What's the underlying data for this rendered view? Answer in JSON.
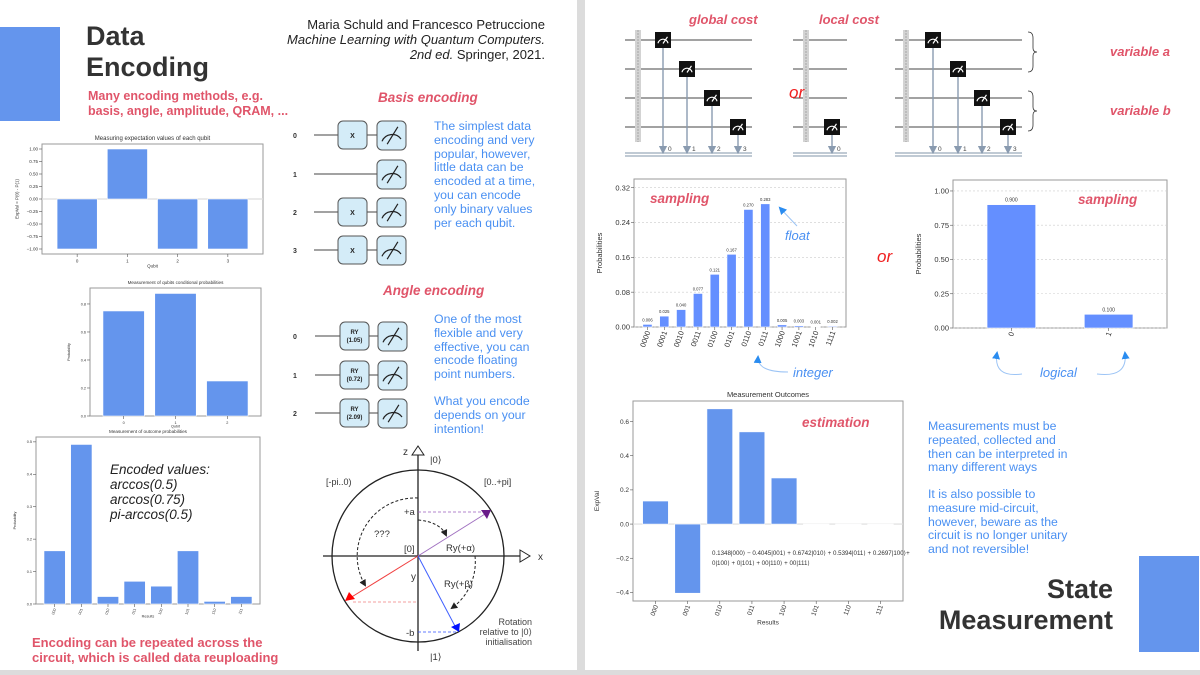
{
  "left_slide": {
    "title": [
      "Data",
      "Encoding"
    ],
    "subtitle": [
      "Many encoding methods, e.g.",
      "basis, angle, amplitude, QRAM, ..."
    ],
    "citation": {
      "authors": "Maria Schuld and Francesco Petruccione",
      "book": "Machine Learning with Quantum Computers.",
      "edition": "2nd ed.",
      "publisher": " Springer, 2021."
    },
    "basis": {
      "title": "Basis encoding",
      "qubits": [
        "0",
        "1",
        "2",
        "3"
      ],
      "gates": [
        "X",
        "",
        "X",
        "X"
      ],
      "description": "The simplest data encoding and very popular, however, little data can be encoded at a time, you can encode only binary values per each qubit."
    },
    "angle": {
      "title": "Angle encoding",
      "qubits": [
        "0",
        "1",
        "2"
      ],
      "gates": [
        {
          "name": "RY",
          "param": "(1.05)"
        },
        {
          "name": "RY",
          "param": "(0.72)"
        },
        {
          "name": "RY",
          "param": "(2.09)"
        }
      ],
      "description": "One of the most flexible and very effective, you can encode floating point numbers.",
      "note": "What you encode depends on your intention!"
    },
    "encoded_values": [
      "Encoded values:",
      "arccos(0.5)",
      "arccos(0.75)",
      "pi-arccos(0.5)"
    ],
    "footer": [
      "Encoding can be repeated across the",
      "circuit, which is called data reuploading"
    ],
    "bloch": {
      "z": "z",
      "x": "x",
      "y": "y",
      "ket0": "|0⟩",
      "ket1": "|1⟩",
      "neg_range": "[-pi..0)",
      "pos_range": "[0..+pi]",
      "plus_a": "+a",
      "minus_b": "-b",
      "origin": "[0]",
      "unknown": "???",
      "ry_alpha": "Ry(+α)",
      "ry_beta": "Ry(+β)",
      "caption": [
        "Rotation",
        "relative to |0⟩",
        "initialisation"
      ]
    }
  },
  "right_slide": {
    "global_cost": "global cost",
    "local_cost": "local cost",
    "or": "or",
    "variable_a": "variable a",
    "variable_b": "variable b",
    "global_bits": [
      "0",
      "1",
      "2",
      "3"
    ],
    "local_bits": [
      "0"
    ],
    "var_bits": [
      "0",
      "1",
      "2",
      "3"
    ],
    "sampling": "sampling",
    "float": "float",
    "integer": "integer",
    "logical": "logical",
    "estimation": "estimation",
    "estimation_formula": [
      "0.1348|000⟩ − 0.4045|001⟩ + 0.6742|010⟩ + 0.5394|011⟩ + 0.2697|100⟩+",
      "0|100⟩ + 0|101⟩ + 00|110⟩ + 00|111⟩"
    ],
    "description": "Measurements must be repeated, collected and then can be interpreted in many different ways",
    "description2": "It is also possible to measure mid-circuit, however, beware as the circuit is no longer unitary and not reversible!",
    "title": [
      "State",
      "Measurement"
    ]
  },
  "colors": {
    "accent": "#6495ed",
    "red": "#e0556a",
    "blue_text": "#4a90f2",
    "qiskit_bar": "#648fff"
  },
  "chart_data": [
    {
      "type": "bar",
      "title": "Measuring expectation values of each qubit",
      "xlabel": "Qubit",
      "ylabel": "ExpVal = P(0) - P(1)",
      "categories": [
        "0",
        "1",
        "2",
        "3"
      ],
      "values": [
        -1.0,
        1.0,
        -1.0,
        -1.0
      ],
      "ylim": [
        -1.1,
        1.1
      ],
      "yticks": [
        1.0,
        0.75,
        0.5,
        0.25,
        0.0,
        -0.25,
        -0.5,
        -0.75,
        -1.0
      ],
      "ytick_labels": [
        "1.00",
        "0.75",
        "0.50",
        "0.25",
        "0.00",
        "−0.25",
        "−0.50",
        "−0.75",
        "−1.00"
      ]
    },
    {
      "type": "bar",
      "title": "Measurement of qubits conditional probabilities",
      "xlabel": "Qubit",
      "ylabel": "Probability",
      "categories": [
        "0",
        "1",
        "2"
      ],
      "values": [
        0.75,
        0.875,
        0.25
      ],
      "ylim": [
        0,
        0.914
      ],
      "yticks": [
        0,
        0.2,
        0.4,
        0.6,
        0.8
      ],
      "ytick_labels": [
        "0.0",
        "0.2",
        "0.4",
        "0.6",
        "0.8"
      ]
    },
    {
      "type": "bar",
      "title": "Measurement of outcome probabilities",
      "xlabel": "Results",
      "ylabel": "Probability",
      "categories": [
        "000",
        "001",
        "010",
        "011",
        "100",
        "101",
        "110",
        "111"
      ],
      "values": [
        0.164,
        0.492,
        0.023,
        0.07,
        0.055,
        0.164,
        0.008,
        0.023
      ],
      "ylim": [
        0,
        0.515
      ],
      "yticks": [
        0,
        0.1,
        0.2,
        0.3,
        0.4,
        0.5
      ],
      "ytick_labels": [
        "0.0",
        "0.1",
        "0.2",
        "0.3",
        "0.4",
        "0.5"
      ]
    },
    {
      "type": "bar",
      "title": "",
      "xlabel": "",
      "ylabel": "Probabilities",
      "categories": [
        "0000",
        "0001",
        "0010",
        "0011",
        "0100",
        "0101",
        "0110",
        "0111",
        "1000",
        "1001",
        "1010",
        "1111"
      ],
      "values": [
        0.006,
        0.025,
        0.04,
        0.077,
        0.121,
        0.167,
        0.27,
        0.283,
        0.005,
        0.003,
        0.001,
        0.002
      ],
      "data_labels": [
        "0.006",
        "0.025",
        "0.040",
        "0.077",
        "0.121",
        "0.167",
        "0.270",
        "0.283",
        "0.005",
        "0.003",
        "0.001",
        "0.002"
      ],
      "ylim": [
        0,
        0.34
      ],
      "yticks": [
        0,
        0.08,
        0.16,
        0.24,
        0.32
      ],
      "ytick_labels": [
        "0.00",
        "0.08",
        "0.16",
        "0.24",
        "0.32"
      ],
      "grid": true
    },
    {
      "type": "bar",
      "title": "",
      "xlabel": "",
      "ylabel": "Probabilities",
      "categories": [
        "0",
        "1"
      ],
      "values": [
        0.9,
        0.1
      ],
      "data_labels": [
        "0.900",
        "0.100"
      ],
      "ylim": [
        0,
        1.08
      ],
      "yticks": [
        0,
        0.25,
        0.5,
        0.75,
        1.0
      ],
      "ytick_labels": [
        "0.00",
        "0.25",
        "0.50",
        "0.75",
        "1.00"
      ],
      "grid": true
    },
    {
      "type": "bar",
      "title": "Measurement Outcomes",
      "xlabel": "Results",
      "ylabel": "ExpVal",
      "categories": [
        "000",
        "001",
        "010",
        "011",
        "100",
        "101",
        "110",
        "111"
      ],
      "values": [
        0.1348,
        -0.4045,
        0.6742,
        0.5394,
        0.2697,
        0,
        0,
        0
      ],
      "ylim": [
        -0.45,
        0.72
      ],
      "yticks": [
        0.6,
        0.4,
        0.2,
        0.0,
        -0.2,
        -0.4
      ],
      "ytick_labels": [
        "0.6",
        "0.4",
        "0.2",
        "0.0",
        "−0.2",
        "−0.4"
      ]
    }
  ]
}
